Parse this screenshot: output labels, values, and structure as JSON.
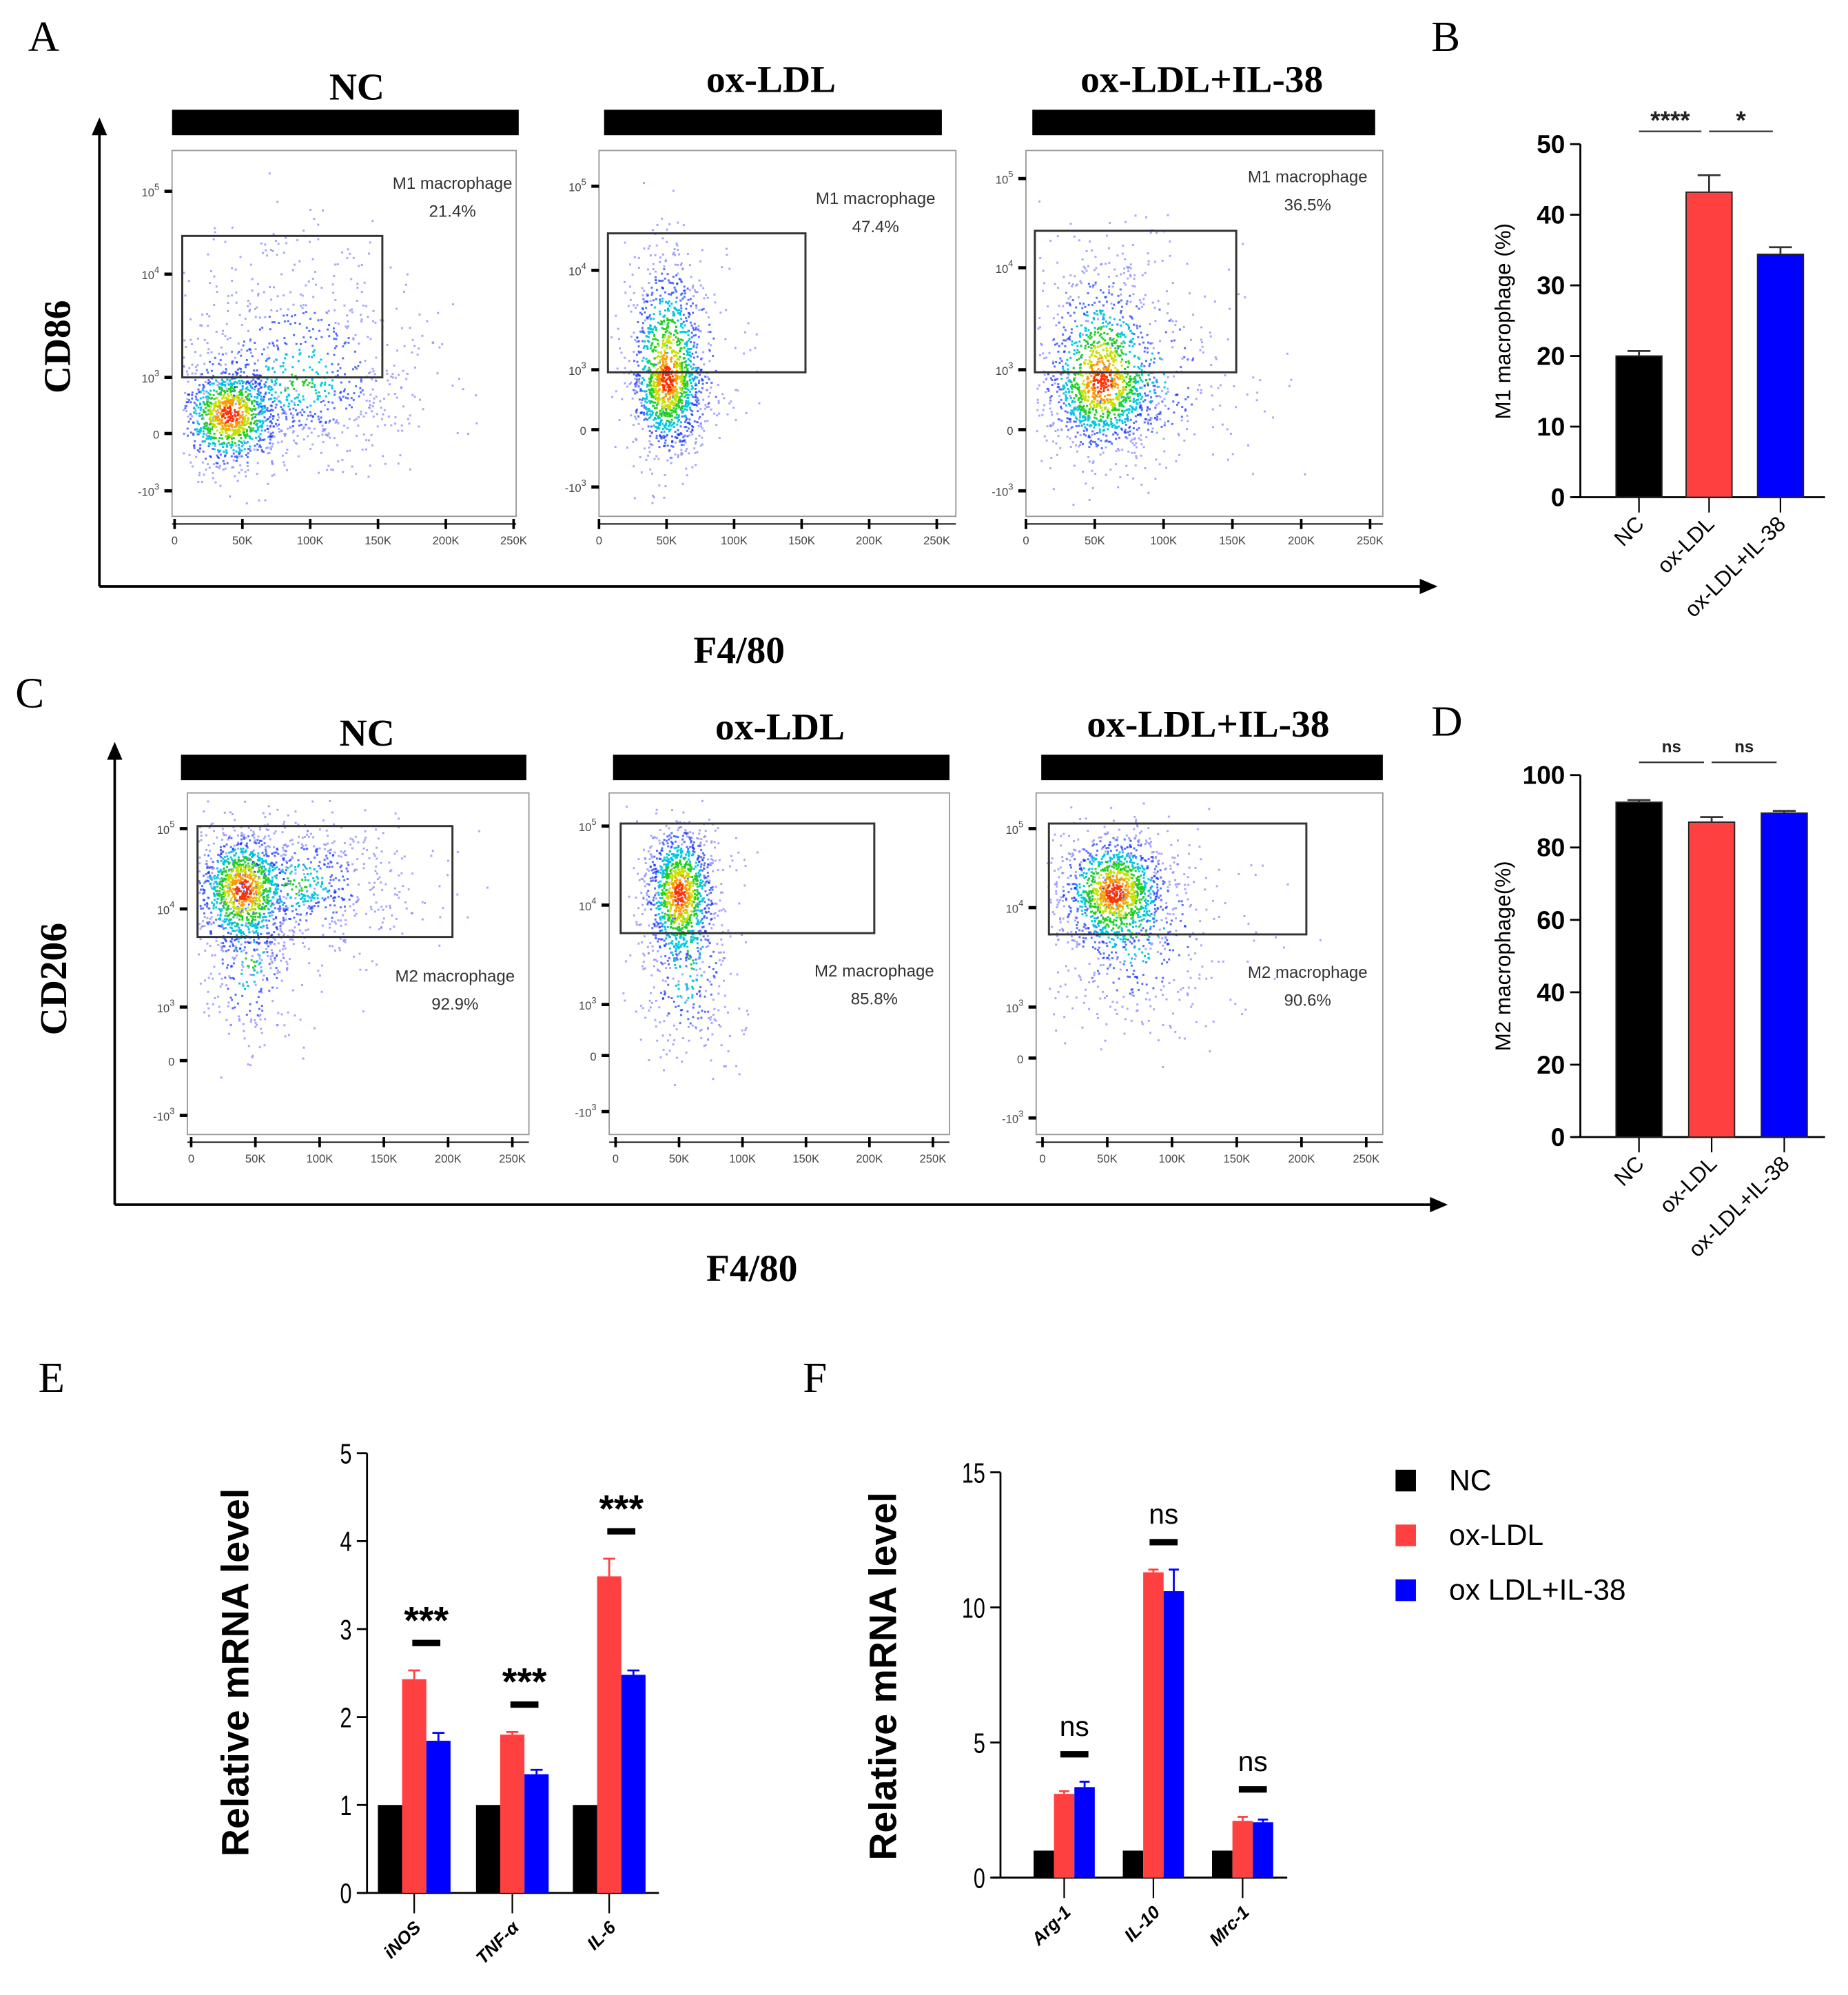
{
  "panel_labels": [
    "A",
    "B",
    "C",
    "D",
    "E",
    "F"
  ],
  "colors": {
    "NC": "#000000",
    "ox-LDL": "#ff4040",
    "ox-LDL+IL-38": "#0000ff"
  },
  "flow": {
    "x_ticks": [
      "0",
      "50K",
      "100K",
      "150K",
      "200K",
      "250K"
    ],
    "y_ticks": [
      {
        "base": "10",
        "exp": "5"
      },
      {
        "base": "10",
        "exp": "4"
      },
      {
        "base": "10",
        "exp": "3"
      },
      {
        "base": "0",
        "exp": ""
      },
      {
        "base": "-10",
        "exp": "3"
      }
    ],
    "A": {
      "y_label": "CD86",
      "x_label": "F4/80",
      "plots": [
        {
          "title": "NC",
          "gate_label": "M1 macrophage",
          "percent": "21.4%"
        },
        {
          "title": "ox-LDL",
          "gate_label": "M1 macrophage",
          "percent": "47.4%"
        },
        {
          "title": "ox-LDL+IL-38",
          "gate_label": "M1 macrophage",
          "percent": "36.5%"
        }
      ]
    },
    "C": {
      "y_label": "CD206",
      "x_label": "F4/80",
      "plots": [
        {
          "title": "NC",
          "gate_label": "M2 macrophage",
          "percent": "92.9%"
        },
        {
          "title": "ox-LDL",
          "gate_label": "M2 macrophage",
          "percent": "85.8%"
        },
        {
          "title": "ox-LDL+IL-38",
          "gate_label": "M2 macrophage",
          "percent": "90.6%"
        }
      ]
    }
  },
  "chart_data": [
    {
      "panel": "B",
      "type": "bar",
      "title": "",
      "xlabel": "",
      "ylabel": "M1 macrophage (%)",
      "categories": [
        "NC",
        "ox-LDL",
        "ox-LDL+IL-38"
      ],
      "values": [
        20.0,
        43.2,
        34.4
      ],
      "errors": [
        0.7,
        2.4,
        1.0
      ],
      "ylim": [
        0,
        50
      ],
      "yticks": [
        "0",
        "10",
        "20",
        "30",
        "40",
        "50"
      ],
      "significance": [
        {
          "pair": [
            0,
            1
          ],
          "label": "****"
        },
        {
          "pair": [
            1,
            2
          ],
          "label": "*"
        }
      ]
    },
    {
      "panel": "D",
      "type": "bar",
      "title": "",
      "xlabel": "",
      "ylabel": "M2 macrophage(%)",
      "categories": [
        "NC",
        "ox-LDL",
        "ox-LDL+IL-38"
      ],
      "values": [
        92.5,
        87.0,
        89.5
      ],
      "errors": [
        0.6,
        1.4,
        0.6
      ],
      "ylim": [
        0,
        100
      ],
      "yticks": [
        "0",
        "20",
        "40",
        "60",
        "80",
        "100"
      ],
      "significance": [
        {
          "pair": [
            0,
            1
          ],
          "label": "ns"
        },
        {
          "pair": [
            1,
            2
          ],
          "label": "ns"
        }
      ]
    },
    {
      "panel": "E",
      "type": "bar",
      "title": "",
      "xlabel": "",
      "ylabel": "Relative mRNA level",
      "categories": [
        "iNOS",
        "TNF-α",
        "IL-6"
      ],
      "series": [
        {
          "name": "NC",
          "values": [
            1.0,
            1.0,
            1.0
          ],
          "errors": [
            0,
            0,
            0
          ]
        },
        {
          "name": "ox-LDL",
          "values": [
            2.43,
            1.8,
            3.6
          ],
          "errors": [
            0.1,
            0.03,
            0.2
          ]
        },
        {
          "name": "ox-LDL+IL-38",
          "values": [
            1.73,
            1.35,
            2.48
          ],
          "errors": [
            0.09,
            0.05,
            0.05
          ]
        }
      ],
      "ylim": [
        0,
        5
      ],
      "yticks": [
        "0",
        "1",
        "2",
        "3",
        "4",
        "5"
      ],
      "significance": [
        "***",
        "***",
        "***"
      ]
    },
    {
      "panel": "F",
      "type": "bar",
      "title": "",
      "xlabel": "",
      "ylabel": "Relative mRNA level",
      "categories": [
        "Arg-1",
        "IL-10",
        "Mrc-1"
      ],
      "series": [
        {
          "name": "NC",
          "values": [
            1.0,
            1.0,
            1.0
          ],
          "errors": [
            0,
            0,
            0
          ]
        },
        {
          "name": "ox-LDL",
          "values": [
            3.1,
            11.3,
            2.1
          ],
          "errors": [
            0.1,
            0.1,
            0.15
          ]
        },
        {
          "name": "ox-LDL+IL-38",
          "values": [
            3.35,
            10.6,
            2.05
          ],
          "errors": [
            0.2,
            0.8,
            0.1
          ]
        }
      ],
      "ylim": [
        0,
        15
      ],
      "yticks": [
        "0",
        "5",
        "10",
        "15"
      ],
      "significance": [
        "ns",
        "ns",
        "ns"
      ],
      "legend": {
        "placement": "right",
        "entries": [
          "NC",
          "ox-LDL",
          "ox LDL+IL-38"
        ]
      }
    }
  ]
}
